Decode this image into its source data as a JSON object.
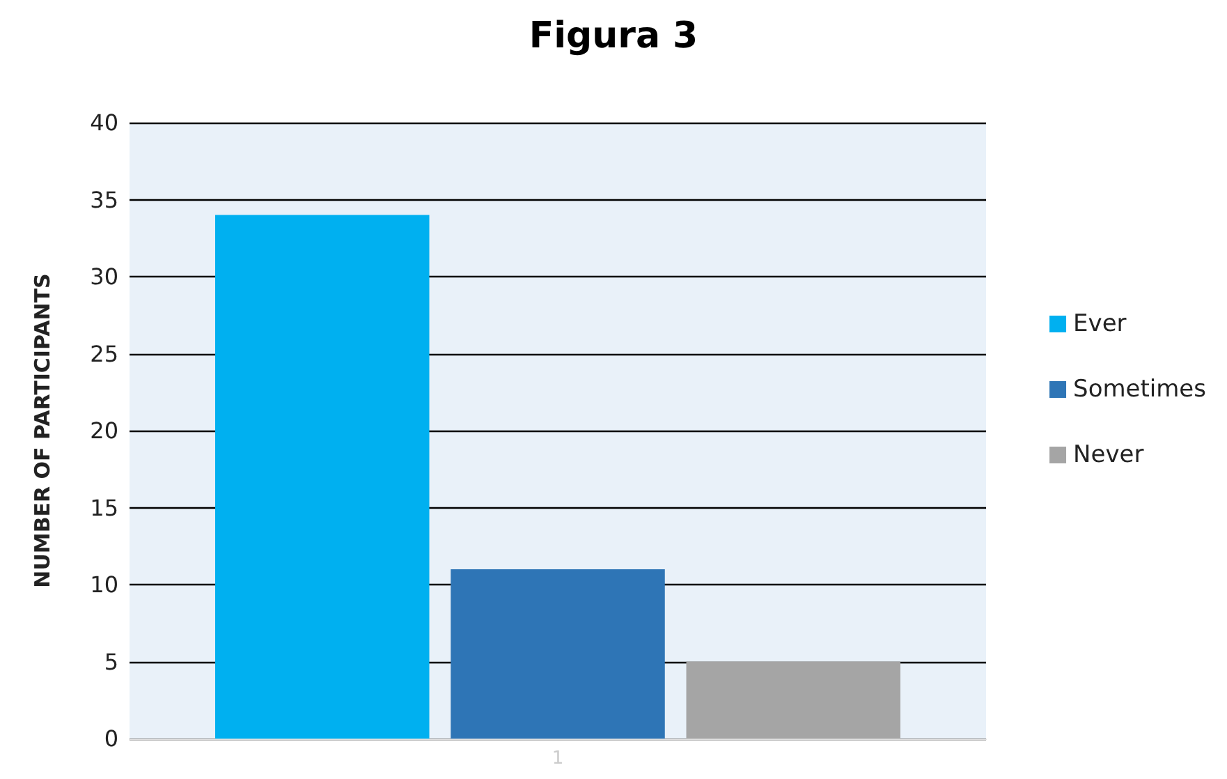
{
  "chart_data": {
    "type": "bar",
    "title": "Figura 3",
    "ylabel": "NUMBER OF PARTICIPANTS",
    "categories": [
      "1"
    ],
    "series": [
      {
        "name": "Ever",
        "color": "#00b0f0",
        "values": [
          34
        ]
      },
      {
        "name": "Sometimes",
        "color": "#2e75b6",
        "values": [
          11
        ]
      },
      {
        "name": "Never",
        "color": "#a5a5a5",
        "values": [
          5
        ]
      }
    ],
    "ylim": [
      0,
      40
    ],
    "yticks": [
      0,
      5,
      10,
      15,
      20,
      25,
      30,
      35,
      40
    ],
    "grid": "y",
    "legend": "right"
  }
}
